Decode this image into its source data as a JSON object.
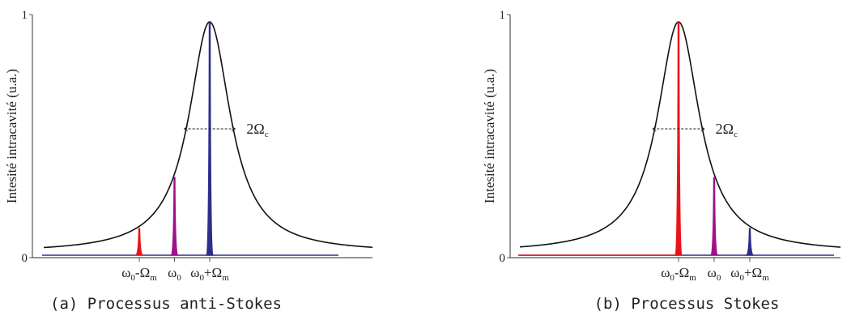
{
  "chart_data": [
    {
      "type": "line",
      "ylabel": "Intesité intracavité (u.a.)",
      "y_ticks": [
        "1",
        "0"
      ],
      "ylim": [
        0,
        1
      ],
      "x_ticks": [
        {
          "base": "ω",
          "sub": "0",
          "op": "-",
          "base2": "Ω",
          "sub2": "m"
        },
        {
          "base": "ω",
          "sub": "0"
        },
        {
          "base": "ω",
          "sub": "0",
          "op": "+",
          "base2": "Ω",
          "sub2": "m"
        }
      ],
      "annotation": {
        "base": "2Ω",
        "sub": "c"
      },
      "caption": "(a) Processus anti-Stokes",
      "cavity": {
        "center": 1.0,
        "halfwidth": 1.0,
        "peak": 0.97
      },
      "peaks": [
        {
          "position": 0.0,
          "height": 0.12,
          "color": "#e8141a"
        },
        {
          "position": 0.5,
          "height": 0.33,
          "color": "#a0108a"
        },
        {
          "position": 1.0,
          "height": 0.97,
          "color": "#2e2e8c"
        }
      ]
    },
    {
      "type": "line",
      "ylabel": "Intesité intracavité (u.a.)",
      "y_ticks": [
        "1",
        "0"
      ],
      "ylim": [
        0,
        1
      ],
      "x_ticks": [
        {
          "base": "ω",
          "sub": "0",
          "op": "-",
          "base2": "Ω",
          "sub2": "m"
        },
        {
          "base": "ω",
          "sub": "0"
        },
        {
          "base": "ω",
          "sub": "0",
          "op": "+",
          "base2": "Ω",
          "sub2": "m"
        }
      ],
      "annotation": {
        "base": "2Ω",
        "sub": "c"
      },
      "caption": "(b) Processus Stokes",
      "cavity": {
        "center": 0.0,
        "halfwidth": 1.0,
        "peak": 0.97
      },
      "peaks": [
        {
          "position": 0.0,
          "height": 0.97,
          "color": "#e8141a"
        },
        {
          "position": 0.5,
          "height": 0.33,
          "color": "#a0108a"
        },
        {
          "position": 1.0,
          "height": 0.12,
          "color": "#2e2e8c"
        }
      ]
    }
  ]
}
